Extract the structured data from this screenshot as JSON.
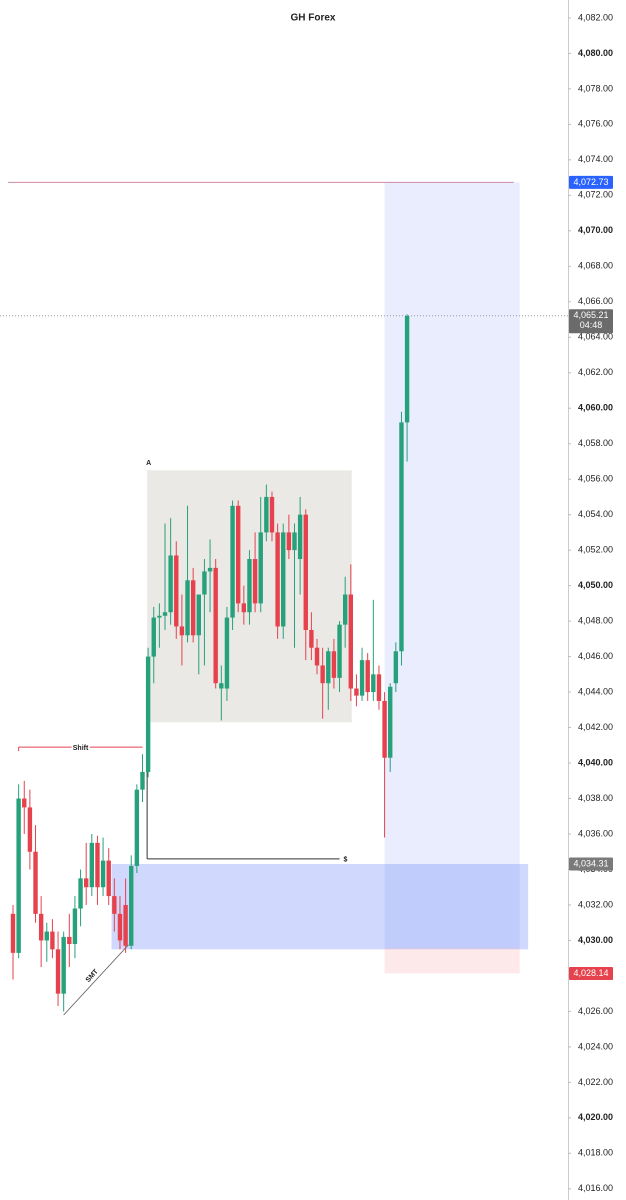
{
  "chart_data": {
    "type": "candlestick",
    "title": "GH Forex",
    "up_color": "#26a17b",
    "down_color": "#e5424d",
    "open": [
      4031.5,
      4029.3,
      4038.0,
      4037.5,
      4035.0,
      4031.5,
      4030.0,
      4030.5,
      4029.5,
      4027.0,
      4030.2,
      4029.8,
      4031.8,
      4033.5,
      4033.0,
      4035.5,
      4033.0,
      4034.5,
      4032.5,
      4031.5,
      4032.0,
      4029.7,
      4034.2,
      4038.5,
      4039.5,
      4046.0,
      4048.2,
      4048.3,
      4048.5,
      4051.7,
      4047.7,
      4047.2,
      4050.3,
      4047.2,
      4049.5,
      4050.8,
      4051.0,
      4044.2,
      4044.2,
      4048.2,
      4054.5,
      4049.0,
      4048.5,
      4051.5,
      4049.0,
      4053.0,
      4055.0,
      4053.0,
      4047.7,
      4053.0,
      4052.0,
      4051.5,
      4054.0,
      4047.5,
      4046.5,
      4045.5,
      4044.5,
      4046.3,
      4044.8,
      4047.8,
      4049.5,
      4044.2,
      4043.8,
      4045.8,
      4044.0,
      4045.0,
      4043.5,
      4040.3,
      4044.5,
      4046.3,
      4059.2
    ],
    "high": [
      4032.0,
      4038.8,
      4039.0,
      4038.5,
      4036.5,
      4032.5,
      4031.0,
      4031.2,
      4030.5,
      4030.5,
      4031.5,
      4032.5,
      4034.0,
      4035.5,
      4036.0,
      4035.9,
      4035.8,
      4035.2,
      4033.5,
      4032.5,
      4033.5,
      4034.8,
      4038.8,
      4040.5,
      4046.5,
      4048.8,
      4049.0,
      4053.5,
      4053.8,
      4052.5,
      4049.5,
      4054.5,
      4051.0,
      4049.5,
      4051.5,
      4052.6,
      4051.5,
      4045.5,
      4048.8,
      4054.8,
      4054.8,
      4050.0,
      4052.0,
      4053.0,
      4055.0,
      4055.7,
      4055.3,
      4053.5,
      4053.5,
      4054.0,
      4053.5,
      4055.0,
      4054.3,
      4048.5,
      4047.0,
      4046.5,
      4046.5,
      4047.0,
      4048.0,
      4050.5,
      4051.2,
      4045.0,
      4046.5,
      4046.2,
      4049.2,
      4045.5,
      4044.0,
      4044.5,
      4046.8,
      4059.8,
      4065.3
    ],
    "low": [
      4027.8,
      4029.0,
      4036.0,
      4034.0,
      4031.0,
      4028.5,
      4028.8,
      4029.0,
      4026.3,
      4026.0,
      4028.5,
      4029.0,
      4030.8,
      4032.0,
      4032.5,
      4032.0,
      4032.5,
      4032.0,
      4030.5,
      4029.5,
      4029.3,
      4029.5,
      4033.8,
      4037.8,
      4039.2,
      4044.5,
      4046.5,
      4047.5,
      4047.8,
      4047.0,
      4045.5,
      4046.8,
      4046.8,
      4045.0,
      4045.5,
      4048.5,
      4044.2,
      4042.4,
      4043.5,
      4047.5,
      4048.5,
      4047.8,
      4047.8,
      4048.5,
      4048.5,
      4052.5,
      4052.5,
      4047.0,
      4047.0,
      4051.5,
      4046.5,
      4049.5,
      4045.8,
      4045.8,
      4045.0,
      4042.5,
      4043.0,
      4044.2,
      4044.0,
      4046.5,
      4043.5,
      4043.2,
      4043.5,
      4043.5,
      4043.5,
      4043.0,
      4035.8,
      4039.5,
      4044.0,
      4045.5,
      4057.0
    ],
    "close": [
      4029.3,
      4038.0,
      4037.5,
      4035.0,
      4031.5,
      4030.0,
      4030.5,
      4029.5,
      4027.0,
      4030.2,
      4029.8,
      4031.8,
      4033.5,
      4033.0,
      4035.5,
      4033.0,
      4034.5,
      4032.5,
      4031.5,
      4030.0,
      4029.7,
      4034.2,
      4038.5,
      4039.5,
      4046.0,
      4048.2,
      4048.3,
      4048.5,
      4051.7,
      4047.7,
      4047.2,
      4050.3,
      4047.2,
      4049.5,
      4050.8,
      4051.0,
      4044.5,
      4044.5,
      4048.2,
      4054.5,
      4049.0,
      4048.5,
      4051.5,
      4049.0,
      4053.0,
      4055.0,
      4053.0,
      4047.7,
      4053.0,
      4052.0,
      4053.0,
      4054.0,
      4047.5,
      4046.5,
      4045.5,
      4044.5,
      4046.3,
      4044.8,
      4047.8,
      4049.5,
      4044.2,
      4043.8,
      4045.8,
      4044.0,
      4045.0,
      4043.5,
      4040.3,
      4044.3,
      4046.3,
      4059.2,
      4065.2
    ],
    "ylim": [
      4015.37,
      4083.01
    ],
    "yticks": [
      {
        "value": 4016,
        "label": "4,016.00"
      },
      {
        "value": 4018,
        "label": "4,018.00"
      },
      {
        "value": 4020,
        "label": "4,020.00"
      },
      {
        "value": 4022,
        "label": "4,022.00"
      },
      {
        "value": 4024,
        "label": "4,024.00"
      },
      {
        "value": 4026,
        "label": "4,026.00"
      },
      {
        "value": 4028,
        "label": "4,028.00"
      },
      {
        "value": 4030,
        "label": "4,030.00"
      },
      {
        "value": 4032,
        "label": "4,032.00"
      },
      {
        "value": 4034,
        "label": "4,034.00"
      },
      {
        "value": 4036,
        "label": "4,036.00"
      },
      {
        "value": 4038,
        "label": "4,038.00"
      },
      {
        "value": 4040,
        "label": "4,040.00"
      },
      {
        "value": 4042,
        "label": "4,042.00"
      },
      {
        "value": 4044,
        "label": "4,044.00"
      },
      {
        "value": 4046,
        "label": "4,046.00"
      },
      {
        "value": 4048,
        "label": "4,048.00"
      },
      {
        "value": 4050,
        "label": "4,050.00"
      },
      {
        "value": 4052,
        "label": "4,052.00"
      },
      {
        "value": 4054,
        "label": "4,054.00"
      },
      {
        "value": 4056,
        "label": "4,056.00"
      },
      {
        "value": 4058,
        "label": "4,058.00"
      },
      {
        "value": 4060,
        "label": "4,060.00"
      },
      {
        "value": 4062,
        "label": "4,062.00"
      },
      {
        "value": 4064,
        "label": "4,064.00"
      },
      {
        "value": 4066,
        "label": "4,066.00"
      },
      {
        "value": 4068,
        "label": "4,068.00"
      },
      {
        "value": 4070,
        "label": "4,070.00"
      },
      {
        "value": 4072,
        "label": "4,072.00"
      },
      {
        "value": 4074,
        "label": "4,074.00"
      },
      {
        "value": 4076,
        "label": "4,076.00"
      },
      {
        "value": 4078,
        "label": "4,078.00"
      },
      {
        "value": 4080,
        "label": "4,080.00"
      },
      {
        "value": 4082,
        "label": "4,082.00"
      }
    ],
    "price_labels": [
      {
        "value": 4072.73,
        "label": "4,072.73",
        "color": "#2962ff"
      },
      {
        "value": 4065.21,
        "label": "4,065.21",
        "sublabel": "04:48",
        "color": "#6b6b6b"
      },
      {
        "value": 4034.31,
        "label": "4,034.31",
        "color": "#7a7a7a"
      },
      {
        "value": 4028.14,
        "label": "4,028.14",
        "color": "#e5424d"
      }
    ],
    "box": {
      "label": "A",
      "top": 4056.5,
      "bottom": 4042.3,
      "start": 24,
      "end": 60
    },
    "shift": {
      "label": "Shift",
      "value": 4040.9,
      "start": 1,
      "end": 23
    },
    "liquidity": {
      "label": "$",
      "value": 4034.6,
      "start": 24,
      "end": 58
    },
    "smt": {
      "label": "SMT",
      "from": [
        9,
        4025.8
      ],
      "to": [
        20.5,
        4029.75
      ]
    },
    "zone": {
      "top": 4034.31,
      "bottom": 4029.5,
      "start": 17.5,
      "end": 91.5
    },
    "position": {
      "target": 4072.73,
      "entry": 4029.6,
      "stop": 4028.14,
      "start": 66,
      "end": 90
    }
  }
}
